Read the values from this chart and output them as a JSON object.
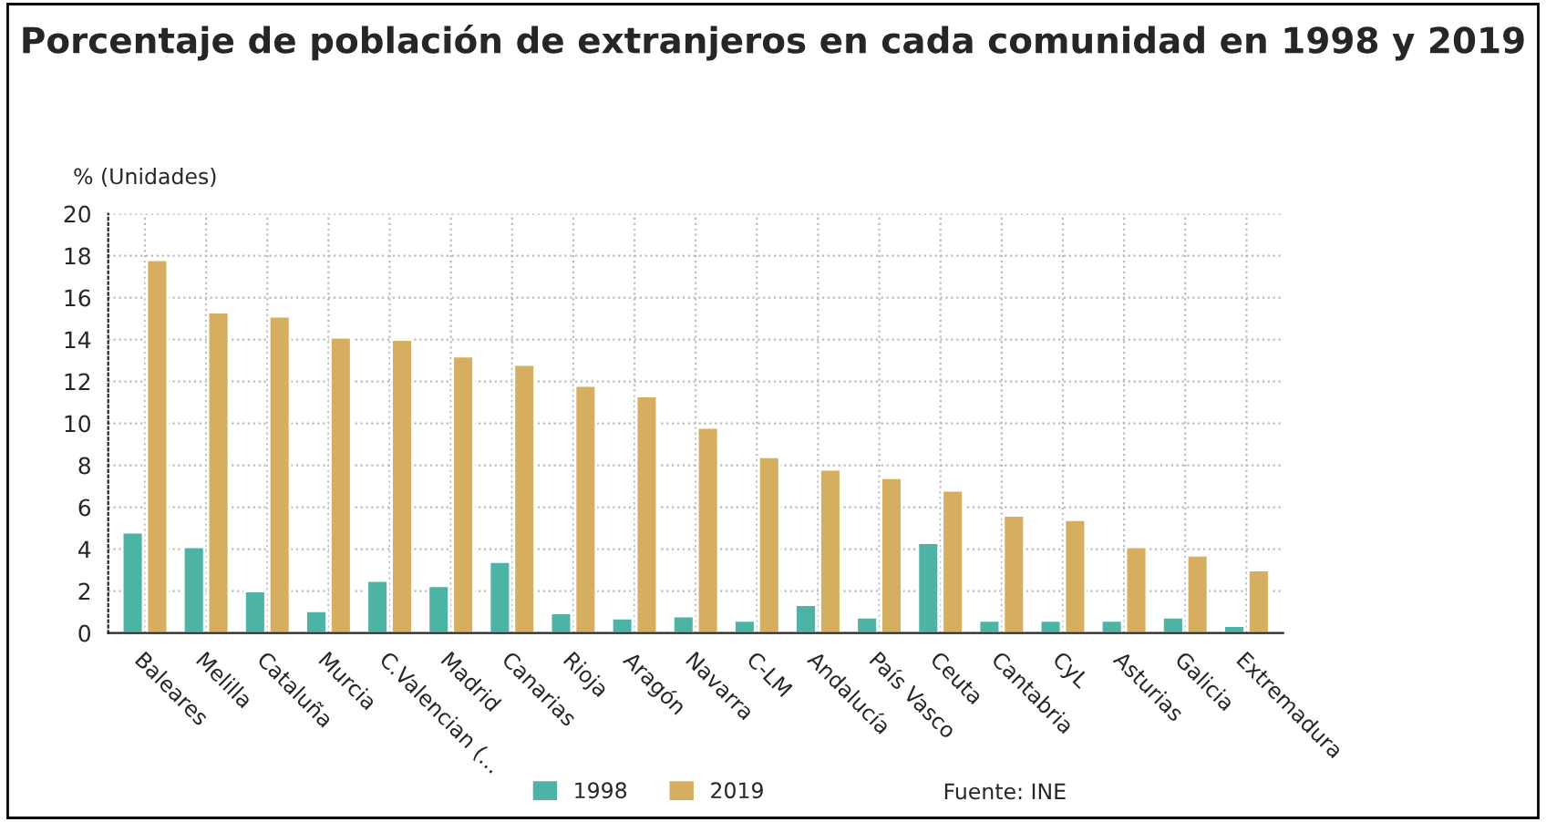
{
  "chart_data": {
    "type": "bar",
    "title": "Porcentaje de población de extranjeros en cada comunidad en 1998 y 2019",
    "ylabel": "% (Unidades)",
    "categories": [
      "Baleares",
      "Melilla",
      "Cataluña",
      "Murcia",
      "C.Valencian (...",
      "Madrid",
      "Canarias",
      "Rioja",
      "Aragón",
      "Navarra",
      "C-LM",
      "Andalucía",
      "País Vasco",
      "Ceuta",
      "Cantabria",
      "CyL",
      "Asturias",
      "Galicia",
      "Extremadura"
    ],
    "series": [
      {
        "name": "1998",
        "color": "#4db3a4",
        "values": [
          4.8,
          4.1,
          2.0,
          1.05,
          2.5,
          2.25,
          3.4,
          0.95,
          0.7,
          0.8,
          0.6,
          1.35,
          0.75,
          4.3,
          0.6,
          0.6,
          0.6,
          0.75,
          0.35
        ]
      },
      {
        "name": "2019",
        "color": "#d6ae5f",
        "values": [
          17.8,
          15.3,
          15.1,
          14.1,
          14.0,
          13.2,
          12.8,
          11.8,
          11.3,
          9.8,
          8.4,
          7.8,
          7.4,
          6.8,
          5.6,
          5.4,
          4.1,
          3.7,
          3.0
        ]
      }
    ],
    "ylim": [
      0,
      20
    ],
    "yticks": [
      0,
      2,
      4,
      6,
      8,
      10,
      12,
      14,
      16,
      18,
      20
    ],
    "grid": true,
    "legend": "bottom",
    "annotations": [
      "Fuente: INE"
    ]
  }
}
